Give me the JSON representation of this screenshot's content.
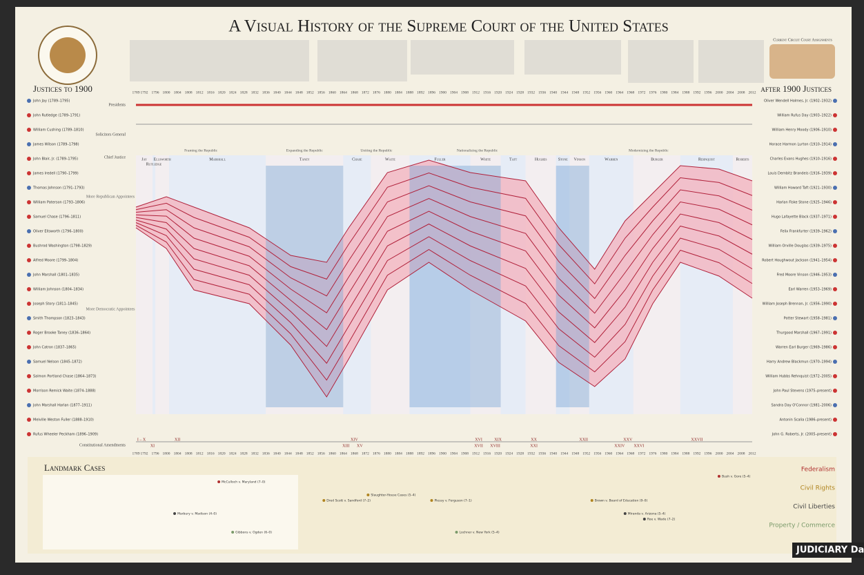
{
  "header": {
    "title": "A Visual History of the Supreme Court of the United States"
  },
  "left_panel": {
    "title": "Justices to 1900",
    "justices": [
      "John Jay (1789–1795)",
      "John Rutledge (1789–1791)",
      "William Cushing (1789–1810)",
      "James Wilson (1789–1798)",
      "John Blair, Jr. (1789–1795)",
      "James Iredell (1790–1799)",
      "Thomas Johnson (1791–1793)",
      "William Paterson (1793–1806)",
      "Samuel Chase (1796–1811)",
      "Oliver Ellsworth (1796–1800)",
      "Bushrod Washington (1798–1829)",
      "Alfred Moore (1799–1804)",
      "John Marshall (1801–1835)",
      "William Johnson (1804–1834)",
      "Joseph Story (1811–1845)",
      "Smith Thompson (1823–1843)",
      "Roger Brooke Taney (1836–1864)",
      "John Catron (1837–1865)",
      "Samuel Nelson (1845–1872)",
      "Salmon Portland Chase (1864–1873)",
      "Morrison Remick Waite (1874–1888)",
      "John Marshall Harlan (1877–1911)",
      "Melville Weston Fuller (1888–1910)",
      "Rufus Wheeler Peckham (1896–1909)"
    ]
  },
  "right_panel": {
    "title": "after 1900 Justices",
    "justices": [
      "Oliver Wendell Holmes, Jr. (1902–1932)",
      "William Rufus Day (1903–1922)",
      "William Henry Moody (1906–1910)",
      "Horace Harmon Lurton (1910–1914)",
      "Charles Evans Hughes (1910–1916)",
      "Louis Dembitz Brandeis (1916–1939)",
      "William Howard Taft (1921–1930)",
      "Harlan Fiske Stone (1925–1946)",
      "Hugo Lafayette Black (1937–1971)",
      "Felix Frankfurter (1939–1962)",
      "William Orville Douglas (1939–1975)",
      "Robert Houghwout Jackson (1941–1954)",
      "Fred Moore Vinson (1946–1953)",
      "Earl Warren (1953–1969)",
      "William Joseph Brennan, Jr. (1956–1990)",
      "Potter Stewart (1958–1981)",
      "Thurgood Marshall (1967–1991)",
      "Warren Earl Burger (1969–1986)",
      "Harry Andrew Blackmun (1970–1994)",
      "William Hubbs Rehnquist (1972–2005)",
      "John Paul Stevens (1975–present)",
      "Sandra Day O'Connor (1981–2006)",
      "Antonin Scalia (1986–present)",
      "John G. Roberts, Jr. (2005–present)"
    ]
  },
  "timeline": {
    "years": [
      1789,
      1792,
      1796,
      1800,
      1804,
      1808,
      1812,
      1816,
      1820,
      1824,
      1828,
      1832,
      1836,
      1840,
      1844,
      1848,
      1852,
      1856,
      1860,
      1864,
      1868,
      1872,
      1876,
      1880,
      1884,
      1888,
      1892,
      1896,
      1900,
      1904,
      1908,
      1912,
      1916,
      1920,
      1924,
      1928,
      1932,
      1936,
      1940,
      1944,
      1948,
      1952,
      1956,
      1960,
      1964,
      1968,
      1972,
      1976,
      1980,
      1984,
      1988,
      1992,
      1996,
      2000,
      2004,
      2008,
      2012
    ],
    "row_labels": [
      "Presidents",
      "Solicitors General",
      "Chief Justice"
    ],
    "eras": [
      "Framing the Republic",
      "Expanding the Republic",
      "Uniting the Republic",
      "Nationalizing the Republic",
      "Modernizing the Republic"
    ],
    "chief_justices": [
      "Jay",
      "Rutledge",
      "Ellsworth",
      "Marshall",
      "Taney",
      "Chase",
      "Waite",
      "Fuller",
      "White",
      "Taft",
      "Hughes",
      "Stone",
      "Vinson",
      "Warren",
      "Burger",
      "Rehnquist",
      "Roberts"
    ],
    "more_republican": "More Republican Appointees",
    "more_democratic": "More Democratic Appointees",
    "amendments_label": "Constitutional Amendments",
    "amendments": [
      "I – X",
      "XI",
      "XII",
      "XIII",
      "XIV",
      "XV",
      "XVI",
      "XVII",
      "XIX",
      "XVIII",
      "XX",
      "XXI",
      "XXII",
      "XXIV",
      "XXV",
      "XXVI",
      "XXVII"
    ]
  },
  "landmark_cases": {
    "title": "Landmark Cases",
    "categories": [
      "Federalism",
      "Civil Rights",
      "Civil Liberties",
      "Property / Commerce"
    ],
    "cases": [
      "Marbury v. Madison (4–0)",
      "McCulloch v. Maryland (7–0)",
      "Gibbons v. Ogden (6–0)",
      "Dred Scott v. Sandford (7–2)",
      "Slaughter-House Cases (5–4)",
      "Plessy v. Ferguson (7–1)",
      "Lochner v. New York (5–4)",
      "Brown v. Board of Education (9–0)",
      "Miranda v. Arizona (5–4)",
      "Roe v. Wade (7–2)",
      "Bush v. Gore (5–4)"
    ]
  },
  "map_title": "Current Circuit Court Assignments",
  "footer_tag": "JUDICIARY Da"
}
